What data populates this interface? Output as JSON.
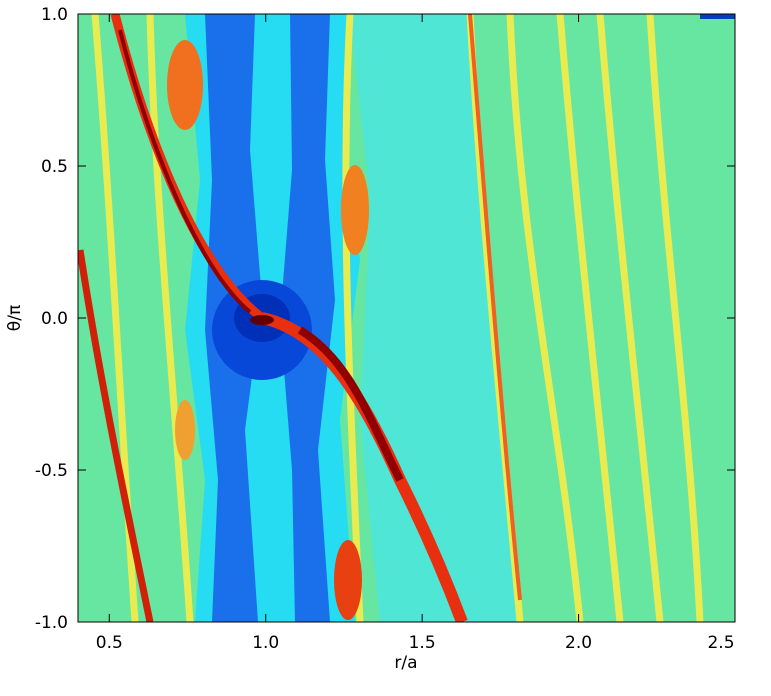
{
  "chart_data": {
    "type": "image",
    "xlabel": "r/a",
    "ylabel": "θ/π",
    "xlim": [
      0.4,
      2.5
    ],
    "ylim": [
      -1,
      1
    ],
    "xticks": [
      0.5,
      {
        "value": 1,
        "label": "1.0"
      },
      1.5,
      {
        "value": 2,
        "label": "2.0"
      },
      2.5
    ],
    "yticks": [
      {
        "value": -1,
        "label": "-1.0"
      },
      -0.5,
      {
        "value": 0,
        "label": "0.0"
      },
      0.5,
      {
        "value": 1,
        "label": "1.0"
      }
    ]
  }
}
